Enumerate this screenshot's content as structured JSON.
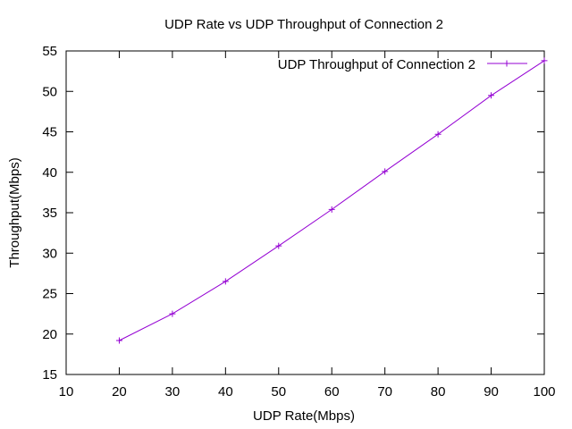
{
  "chart_data": {
    "type": "line",
    "title": "UDP Rate vs UDP Throughput of Connection 2",
    "xlabel": "UDP Rate(Mbps)",
    "ylabel": "Throughput(Mbps)",
    "xlim": [
      10,
      100
    ],
    "ylim": [
      15,
      55
    ],
    "xticks": [
      10,
      20,
      30,
      40,
      50,
      60,
      70,
      80,
      90,
      100
    ],
    "yticks": [
      15,
      20,
      25,
      30,
      35,
      40,
      45,
      50,
      55
    ],
    "grid": false,
    "legend_position": "top-right",
    "series": [
      {
        "name": "UDP Throughput of Connection 2",
        "color": "#9400d3",
        "marker": "plus",
        "x": [
          20,
          30,
          40,
          50,
          60,
          70,
          80,
          90,
          100
        ],
        "y": [
          19.2,
          22.5,
          26.5,
          30.9,
          35.4,
          40.1,
          44.7,
          49.5,
          53.8
        ]
      }
    ]
  }
}
